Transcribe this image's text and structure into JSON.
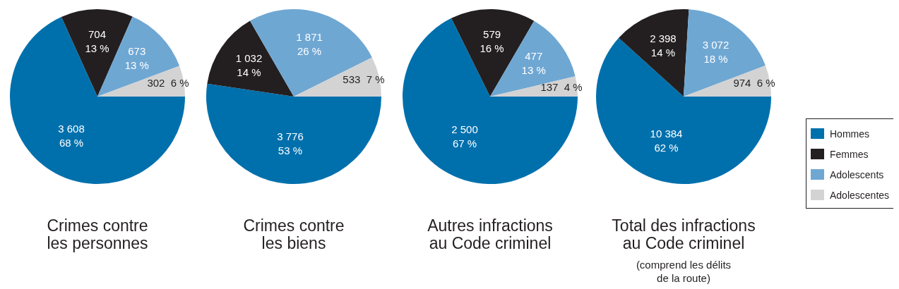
{
  "chart_data": [
    {
      "type": "pie",
      "title": "Crimes contre les personnes",
      "categories": [
        null,
        null,
        null,
        null
      ],
      "values": [
        3608,
        704,
        673,
        302
      ],
      "colors": [
        "#0070ad",
        "#231f20",
        "#6fa7d3",
        "#d3d3d3"
      ],
      "value_labels": [
        "3 608\n68 %",
        "704\n13 %",
        "673\n13 %",
        "302  6 %"
      ]
    },
    {
      "type": "pie",
      "title": "Crimes contre les biens",
      "categories": [
        null,
        null,
        null,
        null
      ],
      "values": [
        3776,
        1032,
        1871,
        533
      ],
      "colors": [
        "#0070ad",
        "#231f20",
        "#6fa7d3",
        "#d3d3d3"
      ],
      "value_labels": [
        "3 776\n53 %",
        "1 032\n14 %",
        "1 871\n26 %",
        "533  7 %"
      ]
    },
    {
      "type": "pie",
      "title": "Autres infractions au Code criminel",
      "categories": [
        null,
        null,
        null,
        null
      ],
      "values": [
        2500,
        579,
        477,
        137
      ],
      "colors": [
        "#0070ad",
        "#231f20",
        "#6fa7d3",
        "#d3d3d3"
      ],
      "value_labels": [
        "2 500\n67 %",
        "579\n16 %",
        "477\n13 %",
        "137  4 %"
      ]
    },
    {
      "type": "pie",
      "title": "Total des infractions au Code criminel",
      "subtitle": "(comprend les délits de la route)",
      "categories": [
        "Hommes",
        "Femmes",
        "Adolescents",
        "Adolescentes"
      ],
      "values": [
        10384,
        2398,
        3072,
        974
      ],
      "colors": [
        "#0070ad",
        "#231f20",
        "#6fa7d3",
        "#d3d3d3"
      ],
      "value_labels": [
        "10 384\n62 %",
        "2 398\n14 %",
        "3 072\n18 %",
        "974  6 %"
      ],
      "legend": "right"
    }
  ]
}
